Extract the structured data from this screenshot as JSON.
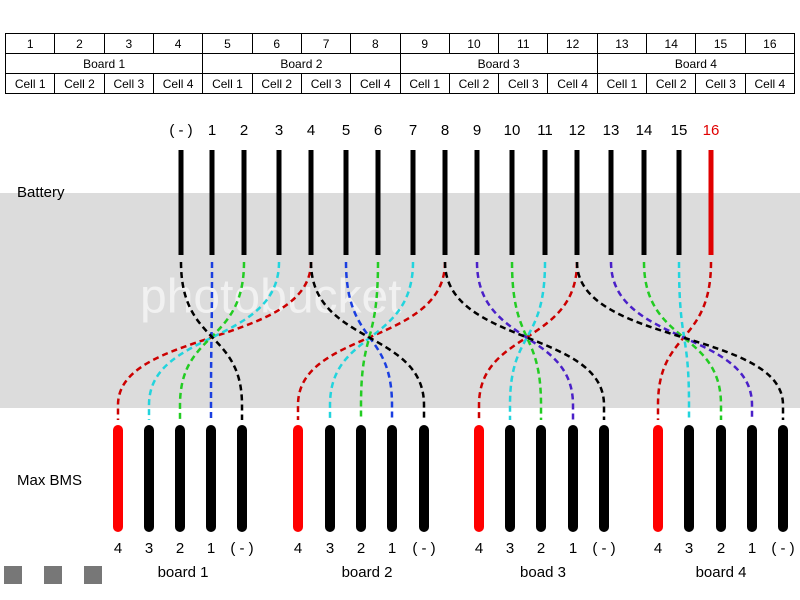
{
  "table": {
    "numbers": [
      1,
      2,
      3,
      4,
      5,
      6,
      7,
      8,
      9,
      10,
      11,
      12,
      13,
      14,
      15,
      16
    ],
    "boards": [
      "Board 1",
      "Board 2",
      "Board 3",
      "Board 4"
    ],
    "cells": [
      "Cell 1",
      "Cell 2",
      "Cell 3",
      "Cell 4",
      "Cell 1",
      "Cell 2",
      "Cell 3",
      "Cell 4",
      "Cell 1",
      "Cell 2",
      "Cell 3",
      "Cell 4",
      "Cell 1",
      "Cell 2",
      "Cell 3",
      "Cell 4"
    ]
  },
  "diagram": {
    "battery_label": "Battery",
    "bms_label": "Max BMS",
    "watermark": "photobucket",
    "top_labels": [
      "( - )",
      "1",
      "2",
      "3",
      "4",
      "5",
      "6",
      "7",
      "8",
      "9",
      "10",
      "11",
      "12",
      "13",
      "14",
      "15",
      "16"
    ],
    "boards": [
      {
        "name": "board 1",
        "terminals": [
          "4",
          "3",
          "2",
          "1",
          "( - )"
        ]
      },
      {
        "name": "board 2",
        "terminals": [
          "4",
          "3",
          "2",
          "1",
          "( - )"
        ]
      },
      {
        "name": "boad 3",
        "terminals": [
          "4",
          "3",
          "2",
          "1",
          "( - )"
        ]
      },
      {
        "name": "board 4",
        "terminals": [
          "4",
          "3",
          "2",
          "1",
          "( - )"
        ]
      }
    ]
  }
}
